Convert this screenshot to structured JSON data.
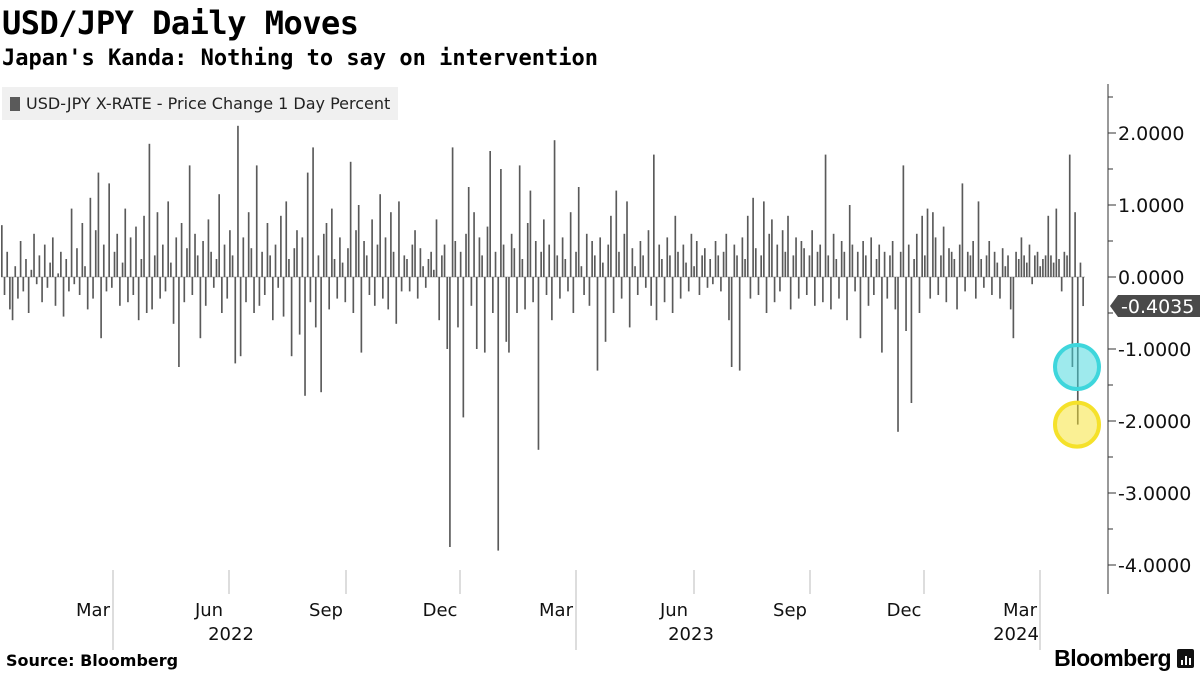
{
  "header": {
    "title": "USD/JPY Daily Moves",
    "subtitle": "Japan's Kanda: Nothing to say on intervention"
  },
  "legend": {
    "label": "USD-JPY X-RATE - Price Change 1 Day Percent"
  },
  "footer": {
    "source": "Source: Bloomberg",
    "brand": "Bloomberg"
  },
  "colors": {
    "bar": "#5a5a5a",
    "axis": "#333333",
    "label_box": "#4a4a4a",
    "circle_cyan": "#3ed6dc",
    "circle_yellow": "#f5e12a"
  },
  "chart_data": {
    "type": "bar",
    "title": "USD/JPY Daily Moves",
    "subtitle": "Japan's Kanda: Nothing to say on intervention",
    "xlabel": "",
    "ylabel": "",
    "ylim": [
      -4.3,
      2.7
    ],
    "yticks": [
      2,
      1,
      0,
      -1,
      -2,
      -3,
      -4
    ],
    "ytick_labels": [
      "2.0000",
      "1.0000",
      "0.0000",
      "-1.0000",
      "-2.0000",
      "-3.0000",
      "-4.0000"
    ],
    "x_month_labels": [
      "Mar",
      "Jun",
      "Sep",
      "Dec",
      "Mar",
      "Jun",
      "Sep",
      "Dec",
      "Mar"
    ],
    "x_year_labels": [
      "2022",
      "2023",
      "2024"
    ],
    "series": [
      {
        "name": "USD-JPY X-RATE - Price Change 1 Day Percent"
      }
    ],
    "last_value_label": "-0.4035",
    "last_value": -0.4035,
    "highlighted_values": [
      -1.25,
      -2.05
    ],
    "values": [
      0.72,
      -0.25,
      0.35,
      -0.45,
      -0.6,
      0.15,
      -0.3,
      0.5,
      -0.2,
      0.25,
      -0.5,
      0.1,
      0.6,
      -0.1,
      0.3,
      -0.35,
      0.45,
      -0.15,
      0.2,
      0.55,
      -0.4,
      0.05,
      0.35,
      -0.55,
      0.25,
      -0.2,
      0.95,
      -0.1,
      0.4,
      -0.25,
      0.75,
      0.15,
      -0.45,
      1.1,
      -0.3,
      0.65,
      1.45,
      -0.85,
      0.45,
      -0.2,
      1.3,
      -0.15,
      0.35,
      0.6,
      -0.4,
      0.2,
      0.95,
      -0.35,
      0.55,
      -0.25,
      0.7,
      -0.6,
      0.25,
      0.85,
      -0.5,
      1.85,
      -0.45,
      0.3,
      0.9,
      -0.3,
      0.45,
      -0.2,
      1.05,
      0.2,
      -0.65,
      0.55,
      -1.25,
      0.75,
      -0.35,
      0.4,
      1.55,
      -0.25,
      0.6,
      0.3,
      -0.85,
      0.5,
      -0.4,
      0.8,
      0.35,
      -0.15,
      0.25,
      1.15,
      -0.5,
      0.45,
      -0.3,
      0.65,
      0.3,
      -1.2,
      2.1,
      -1.1,
      0.55,
      -0.35,
      0.9,
      0.4,
      -0.5,
      1.55,
      -0.4,
      0.35,
      -0.25,
      0.75,
      0.3,
      -0.6,
      0.45,
      -0.15,
      0.85,
      -0.55,
      1.05,
      0.25,
      -1.1,
      0.4,
      0.65,
      -0.8,
      0.55,
      -1.65,
      1.45,
      -0.35,
      1.8,
      -0.7,
      0.3,
      -1.6,
      0.6,
      0.75,
      -0.45,
      0.95,
      0.25,
      -0.3,
      0.55,
      0.2,
      -0.35,
      0.4,
      1.6,
      -0.5,
      0.65,
      1.0,
      -1.05,
      0.5,
      0.3,
      -0.25,
      0.8,
      -0.4,
      0.45,
      1.15,
      -0.3,
      0.55,
      -0.45,
      0.9,
      0.35,
      -0.65,
      1.05,
      -0.2,
      0.3,
      0.25,
      -0.2,
      0.45,
      0.65,
      -0.3,
      0.4,
      0.15,
      -0.15,
      0.25,
      0.35,
      0.1,
      0.8,
      -0.6,
      0.3,
      0.45,
      -1.0,
      -3.75,
      1.8,
      0.5,
      -0.7,
      0.35,
      -1.95,
      0.6,
      1.25,
      -0.4,
      0.9,
      -1.0,
      0.55,
      0.3,
      -1.05,
      0.7,
      1.75,
      -0.5,
      0.35,
      -3.8,
      1.5,
      0.45,
      -0.9,
      -1.05,
      0.6,
      0.4,
      -0.5,
      1.55,
      0.25,
      -0.45,
      0.75,
      1.2,
      -0.35,
      0.5,
      -2.4,
      0.35,
      0.8,
      -0.25,
      0.45,
      -0.6,
      1.9,
      0.3,
      -0.3,
      0.55,
      0.25,
      -0.2,
      0.9,
      -0.5,
      0.35,
      1.25,
      0.15,
      -0.25,
      0.6,
      -0.4,
      0.5,
      0.3,
      -1.3,
      0.55,
      0.2,
      -0.9,
      0.45,
      0.85,
      -0.5,
      1.2,
      0.35,
      -0.3,
      0.6,
      1.05,
      -0.7,
      0.4,
      0.15,
      -0.25,
      0.5,
      0.3,
      -0.15,
      0.65,
      -0.4,
      1.7,
      -0.6,
      0.45,
      0.25,
      -0.35,
      0.55,
      0.3,
      -0.5,
      0.85,
      0.35,
      -0.3,
      0.45,
      0.2,
      -0.2,
      0.6,
      0.15,
      0.5,
      -0.25,
      0.3,
      0.4,
      -0.15,
      0.25,
      -0.1,
      0.5,
      0.3,
      -0.2,
      0.35,
      0.6,
      -0.6,
      -1.25,
      0.45,
      0.3,
      -1.3,
      0.55,
      0.25,
      0.85,
      -0.3,
      1.1,
      0.4,
      -0.25,
      0.3,
      1.05,
      -0.5,
      0.6,
      0.8,
      -0.35,
      0.45,
      -0.2,
      0.65,
      0.35,
      0.85,
      -0.45,
      0.3,
      0.55,
      -0.3,
      0.5,
      0.4,
      -0.25,
      0.3,
      0.65,
      -0.4,
      0.35,
      0.45,
      -0.35,
      1.7,
      0.3,
      -0.45,
      0.6,
      0.25,
      -0.3,
      0.5,
      0.35,
      -0.6,
      1.0,
      0.45,
      -0.2,
      0.35,
      -0.85,
      0.5,
      0.3,
      -0.4,
      0.55,
      -0.25,
      0.25,
      0.45,
      -1.05,
      0.35,
      -0.3,
      0.3,
      0.5,
      -0.45,
      -2.15,
      0.35,
      1.55,
      -0.75,
      0.45,
      -1.75,
      0.25,
      0.6,
      -0.5,
      0.85,
      0.3,
      0.95,
      -0.3,
      0.9,
      0.55,
      -0.25,
      0.3,
      0.7,
      -0.35,
      0.4,
      0.35,
      0.25,
      -0.45,
      0.45,
      1.3,
      -0.2,
      0.35,
      0.3,
      0.5,
      -0.3,
      1.05,
      0.25,
      -0.15,
      0.3,
      0.5,
      -0.25,
      0.35,
      0.2,
      -0.3,
      0.4,
      0.15,
      0.3,
      -0.45,
      -0.85,
      0.35,
      0.25,
      0.55,
      0.3,
      0.2,
      0.45,
      -0.1,
      0.3,
      0.35,
      0.15,
      0.25,
      0.3,
      0.85,
      0.3,
      0.2,
      0.95,
      0.25,
      -0.2,
      0.35,
      0.3,
      1.7,
      -1.25,
      0.9,
      -2.05,
      0.2,
      -0.4035
    ]
  }
}
